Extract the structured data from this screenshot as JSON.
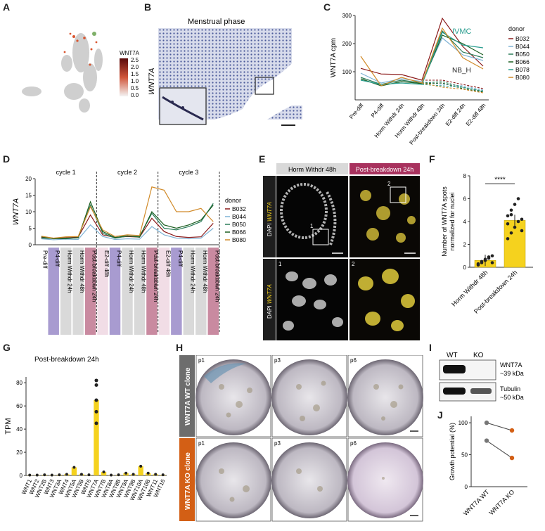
{
  "panels": {
    "A": {
      "label": "A",
      "legend_title": "WNT7A",
      "scale_ticks": [
        "2.5",
        "2.0",
        "1.5",
        "1.0",
        "0.5",
        "0.0"
      ]
    },
    "B": {
      "label": "B",
      "title": "Menstrual phase",
      "ylabel": "WNT7A"
    },
    "C": {
      "label": "C"
    },
    "D": {
      "label": "D"
    },
    "E": {
      "label": "E",
      "header_left": "Horm Withdr 48h",
      "header_right": "Post-breakdown 24h",
      "stain_prefix": "DAPI",
      "stain_gene": "WNT7A",
      "zoom1": "1",
      "zoom2": "2"
    },
    "F": {
      "label": "F"
    },
    "G": {
      "label": "G"
    },
    "H": {
      "label": "H",
      "row1": "WNT7A WT clone",
      "row2": "WNT7A KO clone",
      "passages": [
        "p1",
        "p3",
        "p6"
      ]
    },
    "I": {
      "label": "I",
      "lanes": [
        "WT",
        "KO"
      ],
      "band1": "WNT7A",
      "band1_size": "~39 kDa",
      "band2": "Tubulin",
      "band2_size": "~50 kDa"
    },
    "J": {
      "label": "J"
    }
  },
  "colors": {
    "B032": "#8b1a1a",
    "B044": "#7fb3d5",
    "B050": "#2e7d5b",
    "B066": "#1b5e20",
    "B078": "#2a9d8f",
    "B080": "#d18b2a",
    "purple": "#a89bd0",
    "gray": "#d9d9d9",
    "rose": "#c98aa0",
    "pale": "#f1dde6",
    "yellow": "#f5d21e",
    "orange": "#d35f15"
  },
  "chart_data": [
    {
      "panel": "C",
      "type": "line",
      "ylabel": "WNT7A cpm",
      "ylim": [
        0,
        300
      ],
      "yticks": [
        100,
        200,
        300
      ],
      "categories": [
        "Pre-diff",
        "P4-diff",
        "Horm Withdr 24h",
        "Horm Withdr 48h",
        "Post-breakdown 24h",
        "E2-diff 24h",
        "E2-diff 48h"
      ],
      "annotations": [
        "IVMC",
        "NB_H"
      ],
      "legend_title": "donor",
      "legend_position": "right",
      "series": [
        {
          "name": "B032",
          "color": "#8b1a1a",
          "values": [
            112,
            92,
            90,
            70,
            290,
            190,
            120
          ]
        },
        {
          "name": "B044",
          "color": "#7fb3d5",
          "values": [
            95,
            60,
            75,
            65,
            220,
            160,
            140
          ]
        },
        {
          "name": "B050",
          "color": "#2e7d5b",
          "values": [
            80,
            55,
            70,
            60,
            245,
            170,
            150
          ]
        },
        {
          "name": "B066",
          "color": "#1b5e20",
          "values": [
            75,
            50,
            65,
            58,
            230,
            200,
            160
          ]
        },
        {
          "name": "B078",
          "color": "#2a9d8f",
          "values": [
            70,
            55,
            60,
            55,
            240,
            195,
            185
          ]
        },
        {
          "name": "B080",
          "color": "#d18b2a",
          "values": [
            155,
            50,
            80,
            60,
            255,
            150,
            110
          ]
        }
      ],
      "nbh_series": [
        {
          "name": "B032",
          "values": [
            70,
            55,
            40
          ]
        },
        {
          "name": "B044",
          "values": [
            55,
            50,
            35
          ]
        },
        {
          "name": "B050",
          "values": [
            65,
            45,
            30
          ]
        },
        {
          "name": "B066",
          "values": [
            60,
            40,
            28
          ]
        },
        {
          "name": "B078",
          "values": [
            50,
            45,
            32
          ]
        },
        {
          "name": "B080",
          "values": [
            45,
            38,
            25
          ]
        }
      ]
    },
    {
      "panel": "D",
      "type": "line",
      "ylabel": "WNT7A",
      "ylim": [
        0,
        20
      ],
      "yticks": [
        0,
        5,
        10,
        15,
        20
      ],
      "cycles": [
        "cycle 1",
        "cycle 2",
        "cycle 3"
      ],
      "categories": [
        "Pre-diff",
        "P4-diff",
        "Horm Withdr 24h",
        "Horm Withdr 48h",
        "Post-breakdown 24h",
        "E2-diff 48h",
        "P4-diff",
        "Horm Withdr 24h",
        "Horm Withdr 48h",
        "Post-breakdown 24h",
        "E2-diff 48h",
        "P4-diff",
        "Horm Withdr 24h",
        "Horm Withdr 48h",
        "Post-breakdown 24h"
      ],
      "category_colors": [
        "#ffffff",
        "#a89bd0",
        "#d9d9d9",
        "#d9d9d9",
        "#c98aa0",
        "#f1dde6",
        "#a89bd0",
        "#d9d9d9",
        "#d9d9d9",
        "#c98aa0",
        "#f1dde6",
        "#a89bd0",
        "#d9d9d9",
        "#d9d9d9",
        "#c98aa0"
      ],
      "legend_title": "donor",
      "legend_position": "right",
      "series": [
        {
          "name": "B032",
          "color": "#8b1a1a",
          "values": [
            2.2,
            2.0,
            2.1,
            2.3,
            9.0,
            3.0,
            2.2,
            2.5,
            2.3,
            8.0,
            4.0,
            2.5,
            2.2,
            2.4,
            6.5
          ]
        },
        {
          "name": "B044",
          "color": "#7fb3d5",
          "values": [
            1.8,
            1.5,
            1.7,
            1.6,
            6.0,
            2.5,
            1.6,
            1.8,
            1.7,
            5.5,
            3.0,
            2.0,
            1.8,
            2.0,
            5.0
          ]
        },
        {
          "name": "B050",
          "color": "#2e7d5b",
          "values": [
            2.0,
            1.9,
            1.8,
            2.2,
            12.0,
            3.5,
            2.0,
            2.6,
            2.5,
            9.5,
            5.0,
            4.5,
            5.5,
            7.0,
            12.5
          ]
        },
        {
          "name": "B066",
          "color": "#1b5e20",
          "values": [
            2.4,
            1.8,
            2.0,
            2.1,
            13.0,
            4.0,
            2.2,
            2.7,
            2.3,
            10.0,
            6.0,
            5.0,
            6.0,
            7.5,
            12.0
          ]
        },
        {
          "name": "B080",
          "color": "#d18b2a",
          "values": [
            2.6,
            2.0,
            2.4,
            2.5,
            11.5,
            4.5,
            2.5,
            3.0,
            2.8,
            17.5,
            16.5,
            10.0,
            10.0,
            11.0,
            7.0
          ]
        }
      ]
    },
    {
      "panel": "F",
      "type": "bar",
      "ylabel": "Number of WNT7A spots normalized for nuclei",
      "ylim": [
        0,
        8
      ],
      "yticks": [
        0,
        2,
        4,
        6,
        8
      ],
      "categories": [
        "Horm Withdr 48h",
        "Post-breakdown 24h"
      ],
      "values": [
        0.6,
        4.1
      ],
      "points": [
        [
          0.2,
          0.4,
          0.6,
          0.8,
          1.0,
          0.3,
          0.5,
          0.7,
          0.9,
          0.4
        ],
        [
          2.5,
          3.0,
          3.5,
          4.0,
          4.2,
          4.5,
          5.0,
          5.5,
          6.0,
          3.2,
          3.8,
          4.6
        ]
      ],
      "annotation": "****"
    },
    {
      "panel": "G",
      "type": "bar",
      "title": "Post-breakdown 24h",
      "ylabel": "TPM",
      "ylim": [
        0,
        85
      ],
      "yticks": [
        0,
        20,
        40,
        60,
        80
      ],
      "categories": [
        "WNT1",
        "WNT2",
        "WNT2B",
        "WNT3",
        "WNT3A",
        "WNT4",
        "WNT5A",
        "WNT5B",
        "WNT6",
        "WNT7A",
        "WNT7B",
        "WNT8A",
        "WNT8B",
        "WNT9A",
        "WNT9B",
        "WNT10A",
        "WNT10B",
        "WNT11",
        "WNT16"
      ],
      "values": [
        0.3,
        0.3,
        0.5,
        0.3,
        0.5,
        1.0,
        7.0,
        1.0,
        0.5,
        65.0,
        3.0,
        0.3,
        0.5,
        2.0,
        1.0,
        8.0,
        2.0,
        1.0,
        0.5
      ],
      "points_WNT7A": [
        82,
        78,
        65,
        55,
        45
      ]
    },
    {
      "panel": "J",
      "type": "line",
      "ylabel": "Growth potential (%)",
      "ylim": [
        0,
        110
      ],
      "yticks": [
        0,
        50,
        100
      ],
      "categories": [
        "WNT7A WT",
        "WNT7A KO"
      ],
      "series": [
        {
          "values": [
            100,
            88
          ]
        },
        {
          "values": [
            72,
            45
          ]
        }
      ]
    }
  ]
}
